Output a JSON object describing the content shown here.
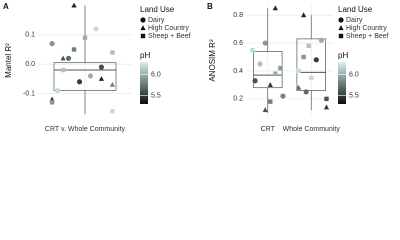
{
  "chart_data": [
    {
      "type": "box",
      "panel": "A",
      "y_label": "Mantel R²",
      "categories": [
        "CRT v. Whole Community"
      ],
      "ylim": [
        -0.18,
        0.205
      ],
      "yticks": [
        -0.1,
        {
          "value": 0,
          "label": "0.0"
        },
        0.1
      ],
      "grid": true,
      "boxes": [
        {
          "whislo": -0.17,
          "q1": -0.09,
          "med": -0.02,
          "q3": 0.005,
          "whishi": 0.2
        }
      ],
      "legend_title": "Land Use",
      "color_title": "pH",
      "colorbar_ticks": [
        {
          "value": 6,
          "label": "6.0"
        },
        {
          "value": 5.5,
          "label": "5.5"
        }
      ],
      "phlim": [
        5.3,
        6.3
      ],
      "low_color": "#0d0d0d",
      "high_color": "#d3f3f3",
      "series": [
        {
          "name": "Dairy",
          "shape": "circle",
          "x": [
            0,
            0,
            0,
            0,
            0,
            0,
            0
          ],
          "values": [
            0.07,
            0.04,
            -0.01,
            -0.04,
            -0.06,
            0.02,
            -0.09
          ],
          "ph": [
            5.9,
            6.1,
            5.6,
            6.0,
            5.5,
            5.7,
            6.2
          ]
        },
        {
          "name": "High Country",
          "shape": "triangle",
          "x": [
            0,
            0,
            0,
            0,
            0
          ],
          "values": [
            0.2,
            0.02,
            -0.12,
            -0.07,
            -0.05
          ],
          "ph": [
            5.4,
            5.6,
            5.5,
            5.8,
            5.4
          ]
        },
        {
          "name": "Sheep + Beef",
          "shape": "square",
          "x": [
            0,
            0,
            0,
            0,
            0,
            0
          ],
          "values": [
            0.12,
            0.09,
            0.05,
            -0.02,
            -0.13,
            -0.16
          ],
          "ph": [
            6.2,
            6.0,
            5.8,
            6.1,
            5.9,
            6.2
          ]
        }
      ]
    },
    {
      "type": "box",
      "panel": "B",
      "y_label": "ANOSIM R²",
      "categories": [
        "CRT",
        "Whole Community"
      ],
      "ylim": [
        0.07,
        0.88
      ],
      "yticks": [
        0.2,
        0.4,
        0.6,
        0.8
      ],
      "grid": true,
      "boxes": [
        {
          "whislo": 0.1,
          "q1": 0.28,
          "med": 0.37,
          "q3": 0.54,
          "whishi": 0.85
        },
        {
          "whislo": 0.12,
          "q1": 0.26,
          "med": 0.39,
          "q3": 0.63,
          "whishi": 0.8
        }
      ],
      "legend_title": "Land Use",
      "color_title": "pH",
      "colorbar_ticks": [
        {
          "value": 6,
          "label": "6.0"
        },
        {
          "value": 5.5,
          "label": "5.5"
        }
      ],
      "phlim": [
        5.3,
        6.3
      ],
      "low_color": "#0d0d0d",
      "high_color": "#d3f3f3",
      "series": [
        {
          "name": "Dairy",
          "shape": "circle",
          "x": [
            0,
            0,
            0,
            0,
            1,
            1,
            1,
            1
          ],
          "values": [
            0.6,
            0.45,
            0.33,
            0.22,
            0.62,
            0.48,
            0.35,
            0.25
          ],
          "ph": [
            5.9,
            6.1,
            5.6,
            5.8,
            6.0,
            5.5,
            6.2,
            5.7
          ]
        },
        {
          "name": "High Country",
          "shape": "triangle",
          "x": [
            0,
            0,
            0,
            1,
            1,
            1
          ],
          "values": [
            0.85,
            0.3,
            0.12,
            0.8,
            0.28,
            0.14
          ],
          "ph": [
            5.4,
            5.5,
            5.6,
            5.4,
            5.7,
            5.5
          ]
        },
        {
          "name": "Sheep + Beef",
          "shape": "square",
          "x": [
            0,
            0,
            0,
            0,
            1,
            1,
            1,
            1
          ],
          "values": [
            0.55,
            0.42,
            0.38,
            0.18,
            0.58,
            0.5,
            0.4,
            0.2
          ],
          "ph": [
            6.2,
            5.9,
            6.0,
            5.8,
            6.1,
            5.9,
            6.2,
            5.6
          ]
        }
      ]
    }
  ]
}
